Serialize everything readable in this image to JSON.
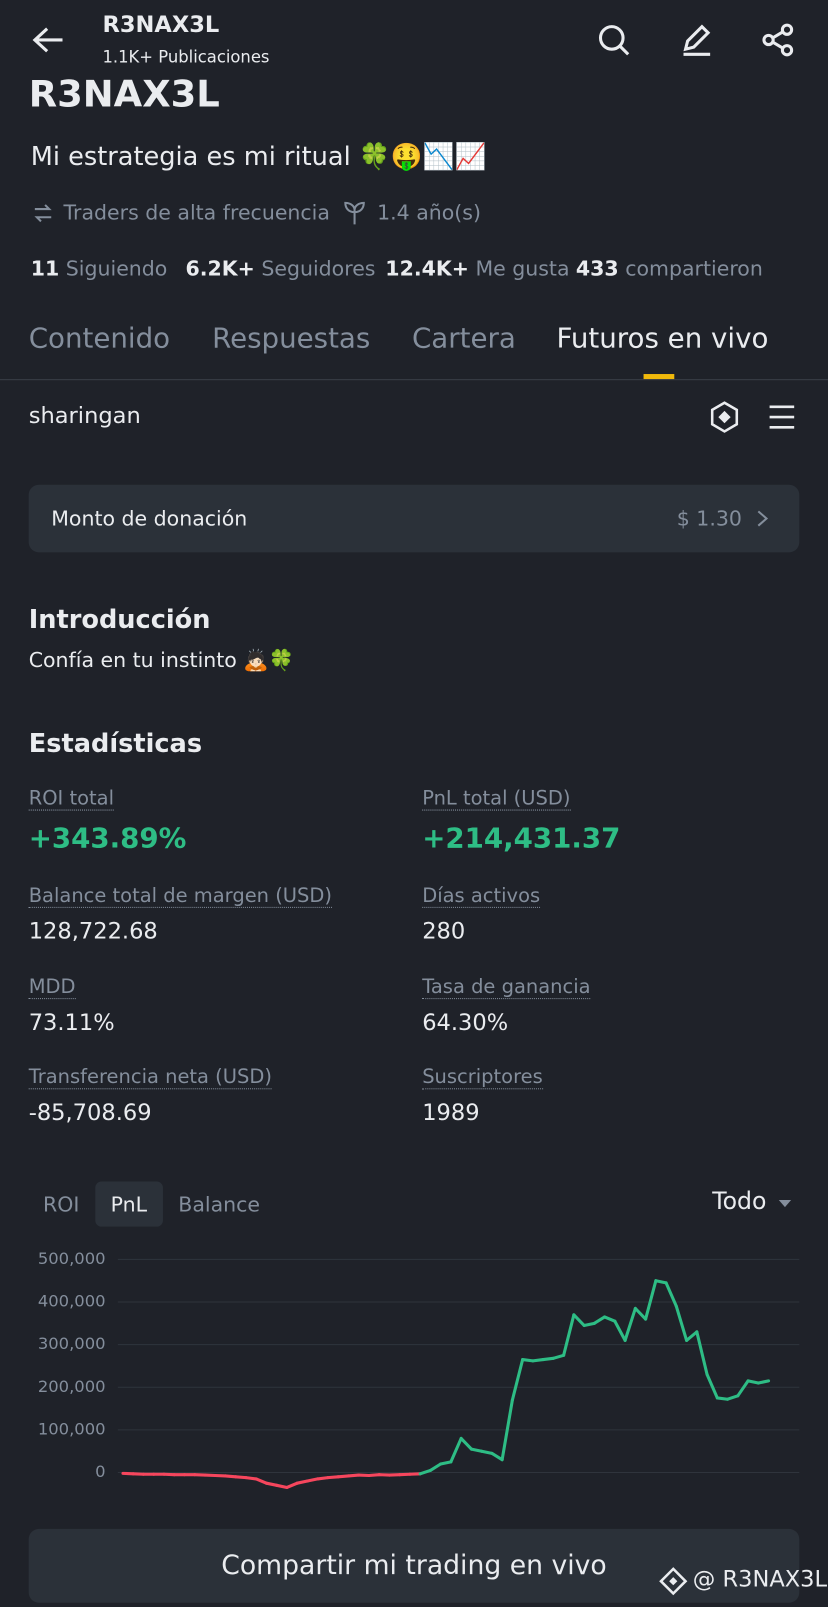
{
  "header": {
    "name": "R3NAX3L",
    "posts": "1.1K+ Publicaciones"
  },
  "profile": {
    "name": "R3NAX3L",
    "bio": "Mi estrategia es mi ritual 🍀🤑📉📈",
    "tags": [
      "Traders de alta frecuencia",
      "1.4 año(s)"
    ],
    "stats": [
      {
        "value": "11",
        "label": "Siguiendo"
      },
      {
        "value": "6.2K+",
        "label": "Seguidores"
      },
      {
        "value": "12.4K+",
        "label": "Me gusta"
      },
      {
        "value": "433",
        "label": "compartieron"
      }
    ]
  },
  "tabs": [
    "Contenido",
    "Respuestas",
    "Cartera",
    "Futuros en vivo"
  ],
  "portfolio_name": "sharingan",
  "donation": {
    "label": "Monto de donación",
    "value": "$ 1.30"
  },
  "intro": {
    "title": "Introducción",
    "text": "Confía en tu instinto 🙇🏻🍀"
  },
  "statistics": {
    "title": "Estadísticas",
    "items": [
      {
        "label": "ROI total",
        "value": "+343.89%"
      },
      {
        "label": "PnL total (USD)",
        "value": "+214,431.37"
      },
      {
        "label": "Balance total de margen (USD)",
        "value": "128,722.68"
      },
      {
        "label": "Días activos",
        "value": "280"
      },
      {
        "label": "MDD",
        "value": "73.11%"
      },
      {
        "label": "Tasa de ganancia",
        "value": "64.30%"
      },
      {
        "label": "Transferencia neta (USD)",
        "value": "-85,708.69"
      },
      {
        "label": "Suscriptores",
        "value": "1989"
      }
    ]
  },
  "chart_tabs": [
    "ROI",
    "PnL",
    "Balance"
  ],
  "range": "Todo",
  "chart_data": {
    "type": "line",
    "positive_color": "#2ebd85",
    "negative_color": "#f6465d",
    "grid": true,
    "ylim": [
      -40000,
      500000
    ],
    "yticks": [
      {
        "value": 500000,
        "label": "500,000"
      },
      {
        "value": 400000,
        "label": "400,000"
      },
      {
        "value": 300000,
        "label": "300,000"
      },
      {
        "value": 200000,
        "label": "200,000"
      },
      {
        "value": 100000,
        "label": "100,000"
      },
      0
    ],
    "values": [
      -2000,
      -3000,
      -4000,
      -4000,
      -4000,
      -5000,
      -5000,
      -5000,
      -6000,
      -7000,
      -8000,
      -10000,
      -12000,
      -15000,
      -25000,
      -30000,
      -35000,
      -25000,
      -20000,
      -15000,
      -12000,
      -10000,
      -8000,
      -6000,
      -7000,
      -5000,
      -6000,
      -5000,
      -4000,
      -3000,
      5000,
      20000,
      25000,
      80000,
      55000,
      50000,
      45000,
      30000,
      170000,
      265000,
      262000,
      265000,
      268000,
      275000,
      370000,
      345000,
      350000,
      365000,
      355000,
      310000,
      385000,
      360000,
      450000,
      445000,
      390000,
      310000,
      330000,
      230000,
      175000,
      172000,
      180000,
      215000,
      210000,
      215000
    ]
  },
  "share_button": "Compartir mi trading en vivo",
  "watermark": "@ R3NAX3L"
}
